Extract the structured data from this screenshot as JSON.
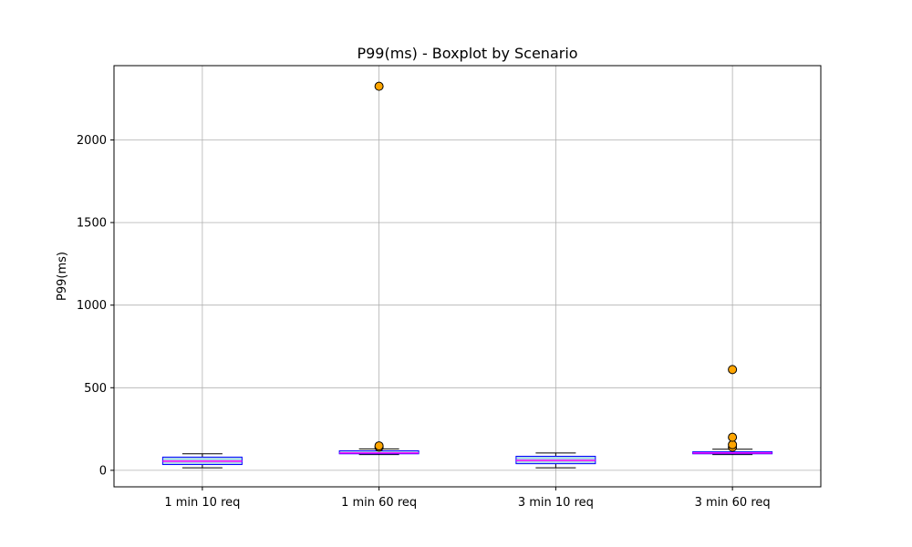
{
  "chart_data": {
    "type": "boxplot",
    "title": "P99(ms) - Boxplot by Scenario",
    "xlabel": "",
    "ylabel": "P99(ms)",
    "ylim": [
      -100,
      2450
    ],
    "yticks": [
      0,
      500,
      1000,
      1500,
      2000
    ],
    "grid": true,
    "categories": [
      "1 min 10 req",
      "1 min 60 req",
      "3 min 10 req",
      "3 min 60 req"
    ],
    "boxes": [
      {
        "whisker_low": 15,
        "q1": 35,
        "median": 55,
        "q3": 80,
        "whisker_high": 100,
        "outliers": []
      },
      {
        "whisker_low": 95,
        "q1": 100,
        "median": 105,
        "q3": 118,
        "whisker_high": 130,
        "outliers": [
          140,
          148,
          2325
        ]
      },
      {
        "whisker_low": 15,
        "q1": 40,
        "median": 60,
        "q3": 85,
        "whisker_high": 105,
        "outliers": []
      },
      {
        "whisker_low": 95,
        "q1": 100,
        "median": 105,
        "q3": 112,
        "whisker_high": 128,
        "outliers": [
          140,
          155,
          200,
          610
        ]
      }
    ],
    "colors": {
      "box_edge": "#0000ff",
      "box_fill": "#add8e6",
      "median": "#ff00ff",
      "whisker": "#000000",
      "outlier_fill": "#ffa500",
      "outlier_edge": "#000000",
      "grid": "#b0b0b0"
    }
  }
}
